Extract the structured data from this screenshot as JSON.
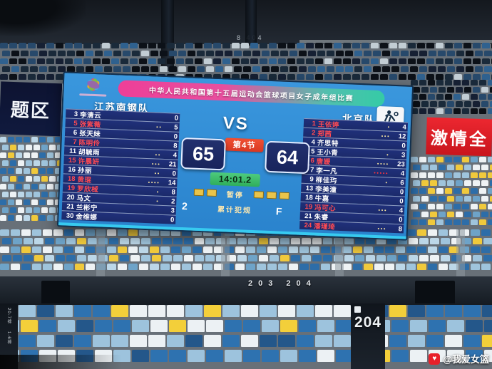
{
  "scene": {
    "top_label_prefix": "8",
    "top_label": "404",
    "concourse_label": "203 204",
    "big_section_label": "204",
    "stair_sign_1": "20-7排",
    "stair_sign_2": "1-6排",
    "left_screen_text": "题区",
    "red_banner_text": "激情全",
    "watermark_text": "@我爱女篮",
    "watermark_logo_glyph": "♥"
  },
  "scoreboard": {
    "title": "中华人民共和国第十五届运动会篮球项目女子成年组比赛",
    "vs": "VS",
    "period_label": "第4节",
    "clock": "14:01.2",
    "timeout_label": "暂停",
    "fouls_label": "累计犯规",
    "emblem_colors": [
      "#e64686",
      "#f5a623",
      "#41b6e6",
      "#7bc143",
      "#9b59b6"
    ],
    "home": {
      "name": "江苏南钢队",
      "score": "65",
      "timeouts": 2,
      "team_fouls": "2",
      "players": [
        {
          "num": "3",
          "name": "李清云",
          "fouls": 0,
          "pts": "0",
          "on_court": false
        },
        {
          "num": "5",
          "name": "张紫薇",
          "fouls": 2,
          "pts": "5",
          "on_court": true
        },
        {
          "num": "6",
          "name": "张天妹",
          "fouls": 0,
          "pts": "0",
          "on_court": false
        },
        {
          "num": "7",
          "name": "陈明伶",
          "fouls": 0,
          "pts": "8",
          "on_court": true
        },
        {
          "num": "11",
          "name": "胡毓雨",
          "fouls": 2,
          "pts": "4",
          "on_court": false
        },
        {
          "num": "15",
          "name": "许晨妍",
          "fouls": 3,
          "pts": "21",
          "on_court": true
        },
        {
          "num": "16",
          "name": "孙丽",
          "fouls": 2,
          "pts": "0",
          "on_court": false
        },
        {
          "num": "18",
          "name": "黄琨",
          "fouls": 4,
          "pts": "14",
          "on_court": true
        },
        {
          "num": "19",
          "name": "罗欣棫",
          "fouls": 1,
          "pts": "8",
          "on_court": true
        },
        {
          "num": "20",
          "name": "马文",
          "fouls": 1,
          "pts": "2",
          "on_court": false
        },
        {
          "num": "21",
          "name": "兰彬宁",
          "fouls": 0,
          "pts": "3",
          "on_court": false
        },
        {
          "num": "30",
          "name": "金维娜",
          "fouls": 0,
          "pts": "0",
          "on_court": false
        }
      ]
    },
    "away": {
      "name": "北京队",
      "score": "64",
      "timeouts": 3,
      "team_fouls": "F",
      "players": [
        {
          "num": "1",
          "name": "王依婷",
          "fouls": 1,
          "pts": "4",
          "on_court": true
        },
        {
          "num": "2",
          "name": "郑茜",
          "fouls": 3,
          "pts": "12",
          "on_court": true
        },
        {
          "num": "4",
          "name": "齐思特",
          "fouls": 0,
          "pts": "0",
          "on_court": false
        },
        {
          "num": "5",
          "name": "王小青",
          "fouls": 1,
          "pts": "3",
          "on_court": false
        },
        {
          "num": "6",
          "name": "唐媛",
          "fouls": 4,
          "pts": "23",
          "on_court": true
        },
        {
          "num": "7",
          "name": "李一凡",
          "fouls": 5,
          "pts": "4",
          "on_court": false,
          "fouled_out": true
        },
        {
          "num": "9",
          "name": "柳佳玙",
          "fouls": 1,
          "pts": "6",
          "on_court": false
        },
        {
          "num": "13",
          "name": "李美潼",
          "fouls": 0,
          "pts": "0",
          "on_court": false
        },
        {
          "num": "18",
          "name": "牛嘉",
          "fouls": 0,
          "pts": "0",
          "on_court": false
        },
        {
          "num": "19",
          "name": "冯可心",
          "fouls": 3,
          "pts": "4",
          "on_court": true
        },
        {
          "num": "21",
          "name": "朱睿",
          "fouls": 0,
          "pts": "0",
          "on_court": false
        },
        {
          "num": "24",
          "name": "潘瑾琦",
          "fouls": 3,
          "pts": "8",
          "on_court": true
        }
      ]
    }
  }
}
